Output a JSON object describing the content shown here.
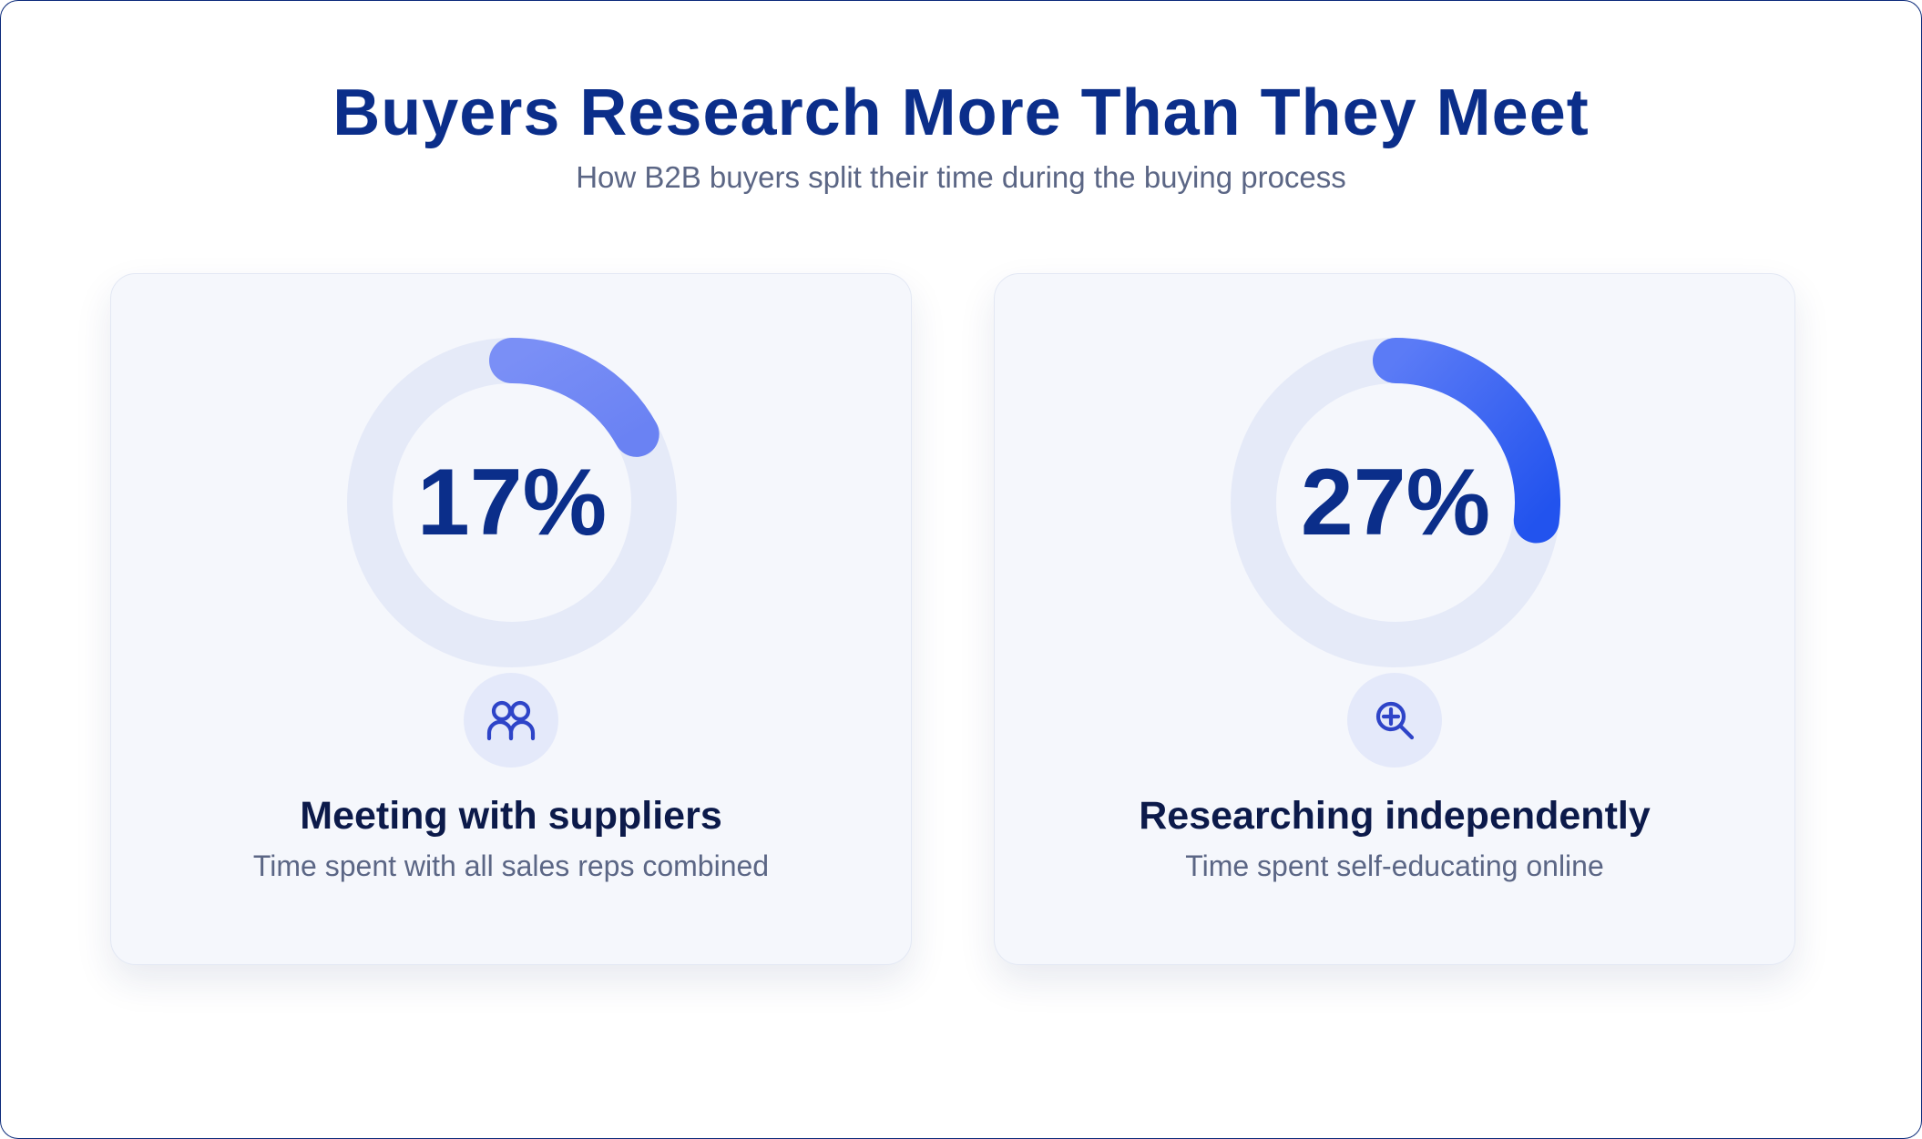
{
  "title": "Buyers Research More Than They Meet",
  "subtitle": "How B2B buyers split their time during the buying process",
  "colors": {
    "title": "#0b2e8a",
    "track": "#e5eaf8",
    "arc_light": "#7489f5",
    "arc_strong": "#2456ee",
    "icon_bg": "#e4e9fa",
    "icon_stroke": "#2e44c8"
  },
  "cards": [
    {
      "value": 17,
      "value_label": "17%",
      "icon": "people-icon",
      "label": "Meeting with suppliers",
      "description": "Time spent with all sales reps combined"
    },
    {
      "value": 27,
      "value_label": "27%",
      "icon": "search-plus-icon",
      "label": "Researching independently",
      "description": "Time spent self-educating online"
    }
  ],
  "chart_data": {
    "type": "pie",
    "subtype": "donut-kpi",
    "title": "Buyers Research More Than They Meet",
    "subtitle": "How B2B buyers split their time during the buying process",
    "unit": "%",
    "max": 100,
    "categories": [
      "Meeting with suppliers",
      "Researching independently"
    ],
    "values": [
      17,
      27
    ]
  }
}
